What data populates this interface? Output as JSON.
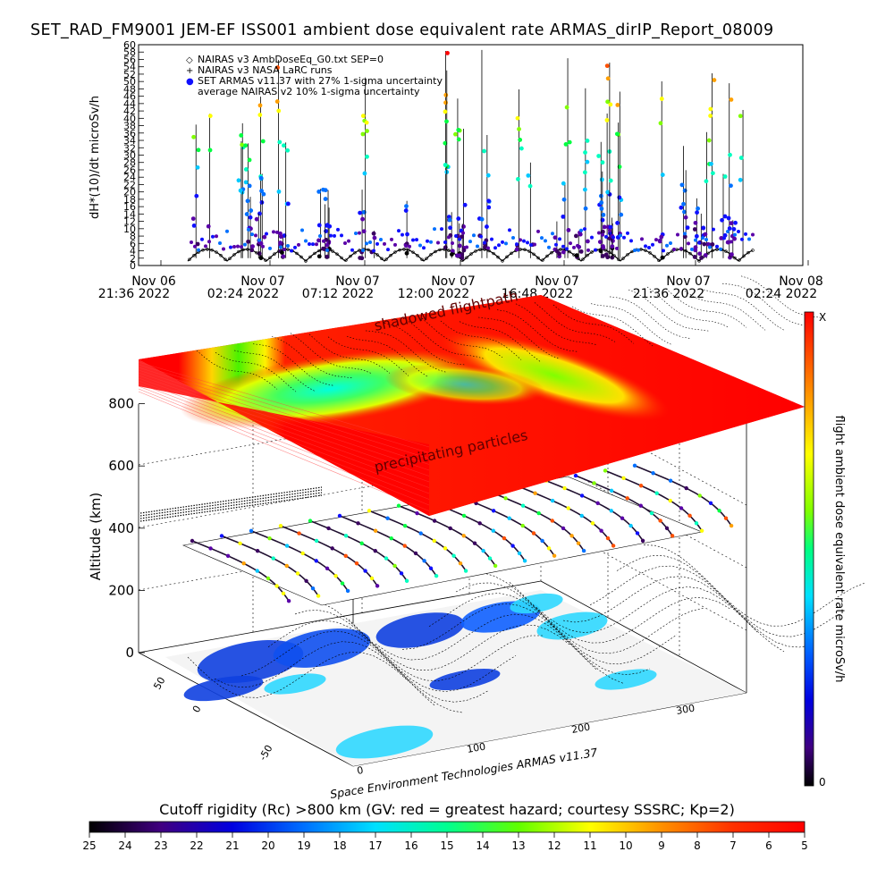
{
  "title": "SET_RAD_FM9001  JEM-EF ISS001 ambient dose equivalent rate ARMAS_dirIP_Report_08009",
  "chart_data": [
    {
      "type": "scatter",
      "ylabel": "dH*(10)/dt microSv/h",
      "ylim": [
        0,
        60
      ],
      "yticks": [
        0,
        2,
        4,
        6,
        8,
        10,
        12,
        14,
        16,
        18,
        20,
        22,
        24,
        26,
        28,
        30,
        32,
        34,
        36,
        38,
        40,
        42,
        44,
        46,
        48,
        50,
        52,
        54,
        56,
        58,
        60
      ],
      "xticks": [
        {
          "l1": "Nov 06",
          "l2": "21:36 2022"
        },
        {
          "l1": "Nov 07",
          "l2": "02:24 2022"
        },
        {
          "l1": "Nov 07",
          "l2": "07:12 2022"
        },
        {
          "l1": "Nov 07",
          "l2": "12:00 2022"
        },
        {
          "l1": "Nov 07",
          "l2": "16:48 2022"
        },
        {
          "l1": "Nov 07",
          "l2": "21:36 2022"
        },
        {
          "l1": "Nov 08",
          "l2": "02:24 2022"
        }
      ],
      "legend": [
        {
          "symbol": "◇",
          "text": "NAIRAS v3 AmbDoseEq_G0.txt SEP=0"
        },
        {
          "symbol": "+",
          "text": "NAIRAS v3 NASA LaRC runs"
        },
        {
          "symbol": "●",
          "text": "SET ARMAS v11.37 with 27% 1-sigma uncertainty"
        },
        {
          "symbol": "",
          "text": "average NAIRAS v2 10% 1-sigma uncertainty"
        }
      ],
      "series_note_visible": false
    },
    {
      "type": "heatmap",
      "zlabel": "Altitude (km)",
      "zticks": [
        0,
        200,
        400,
        600,
        800
      ],
      "lat_ticks": [
        -50,
        0,
        50
      ],
      "lon_ticks": [
        0,
        100,
        200,
        300
      ],
      "annotations": [
        "shadowed flightpath",
        "precipitating particles"
      ],
      "footer": "Space Environment Technologies ARMAS v11.37",
      "colorbar": {
        "label": "flight ambient dose equivalent rate microSv/h",
        "top": "X",
        "bottom": "0"
      }
    },
    {
      "type": "heatmap",
      "title": "Cutoff rigidity (Rc) >800 km (GV: red = greatest hazard; courtesy SSSRC; Kp=2)",
      "ticks": [
        25,
        24,
        23,
        22,
        21,
        20,
        19,
        18,
        17,
        16,
        15,
        14,
        13,
        12,
        11,
        10,
        9,
        8,
        7,
        6,
        5
      ]
    }
  ],
  "colors": {
    "rainbow": [
      "#000000",
      "#3a0060",
      "#5a00a8",
      "#1010ff",
      "#0070ff",
      "#00c8ff",
      "#00ffc0",
      "#00ff40",
      "#80ff00",
      "#ffff00",
      "#ffa000",
      "#ff5000",
      "#ff0000"
    ],
    "land": "#f2f2f2",
    "ocean_deep": "#1040e0",
    "ocean_shallow": "#30d8ff"
  }
}
